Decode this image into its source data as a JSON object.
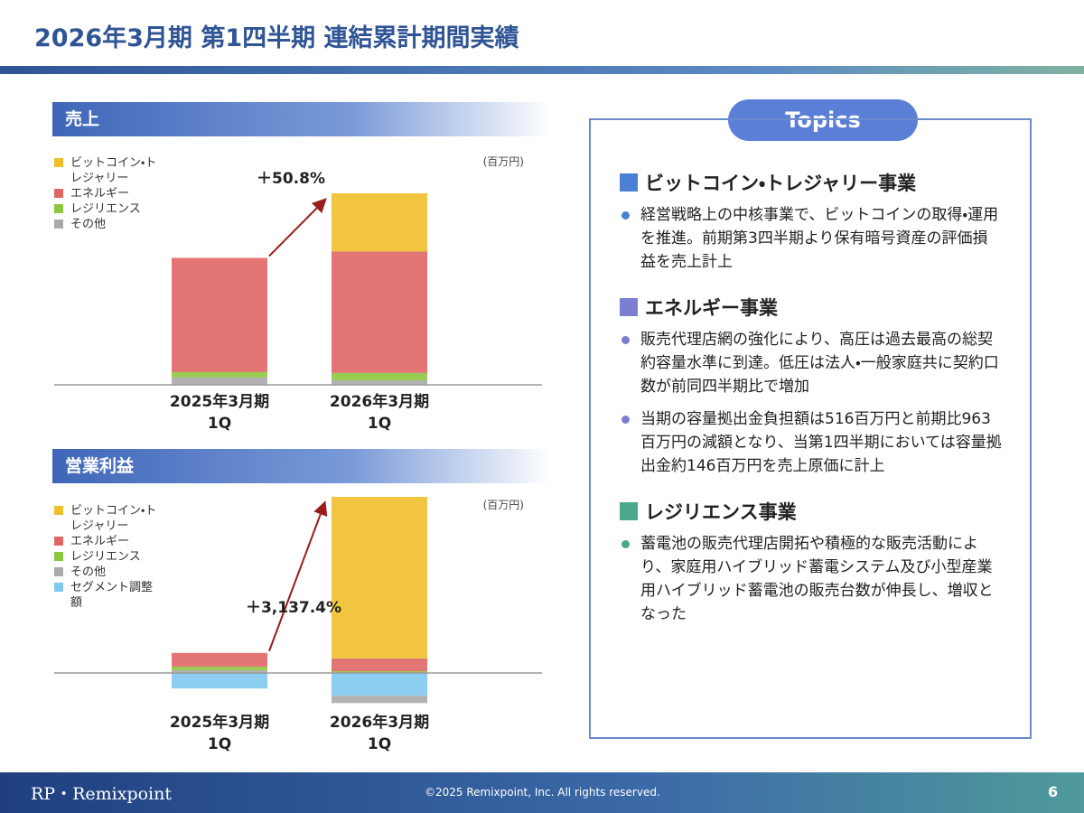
{
  "header": {
    "title": "2026年3月期 第1四半期 連結累計期間実績"
  },
  "chart_data": [
    {
      "type": "bar",
      "stacked": true,
      "title": "売上",
      "unit": "(百万円)",
      "categories": [
        "2025年3月期\n1Q",
        "2026年3月期\n1Q"
      ],
      "series": [
        {
          "name": "ビットコイン・トレジャリー",
          "color": "#f0bf2a",
          "values": [
            0,
            1910
          ]
        },
        {
          "name": "エネルギー",
          "color": "#e06666",
          "values": [
            3750,
            3990
          ]
        },
        {
          "name": "レジリエンス",
          "color": "#8dc63f",
          "values": [
            180,
            240
          ]
        },
        {
          "name": "その他",
          "color": "#aaaaaa",
          "values": [
            240,
            150
          ]
        }
      ],
      "annotation": "＋50.8%"
    },
    {
      "type": "bar",
      "stacked": true,
      "title": "営業利益",
      "unit": "(百万円)",
      "categories": [
        "2025年3月期\n1Q",
        "2026年3月期\n1Q"
      ],
      "series": [
        {
          "name": "ビットコイン・トレジャリー",
          "color": "#f0bf2a",
          "values": [
            0,
            1770
          ]
        },
        {
          "name": "エネルギー",
          "color": "#e06666",
          "values": [
            150,
            140
          ]
        },
        {
          "name": "レジリエンス",
          "color": "#8dc63f",
          "values": [
            40,
            20
          ]
        },
        {
          "name": "その他",
          "color": "#aaaaaa",
          "values": [
            30,
            -80
          ]
        },
        {
          "name": "セグメント調整額",
          "color": "#7fc8f0",
          "values": [
            -170,
            -250
          ]
        }
      ],
      "annotation": "＋3,137.4%"
    }
  ],
  "topics": {
    "title": "Topics",
    "sections": [
      {
        "heading": "ビットコイン・トレジャリー事業",
        "color": "#4a7fd4",
        "bullets": [
          "経営戦略上の中核事業で、ビットコインの取得・運用を推進。前期第3四半期より保有暗号資産の評価損益を売上計上"
        ]
      },
      {
        "heading": "エネルギー事業",
        "color": "#7b7fd0",
        "bullets": [
          "販売代理店網の強化により、高圧は過去最高の総契約容量水準に到達。低圧は法人・一般家庭共に契約口数が前同四半期比で増加",
          "当期の容量拠出金負担額は516百万円と前期比963百万円の減額となり、当第1四半期においては容量拠出金約146百万円を売上原価に計上"
        ]
      },
      {
        "heading": "レジリエンス事業",
        "color": "#4aa88a",
        "bullets": [
          "蓄電池の販売代理店開拓や積極的な販売活動により、家庭用ハイブリッド蓄電システム及び小型産業用ハイブリッド蓄電池の販売台数が伸長し、増収となった"
        ]
      }
    ]
  },
  "footer": {
    "logo": "RP・Remixpoint",
    "copyright": "©2025 Remixpoint, Inc. All rights reserved.",
    "page": 6
  }
}
